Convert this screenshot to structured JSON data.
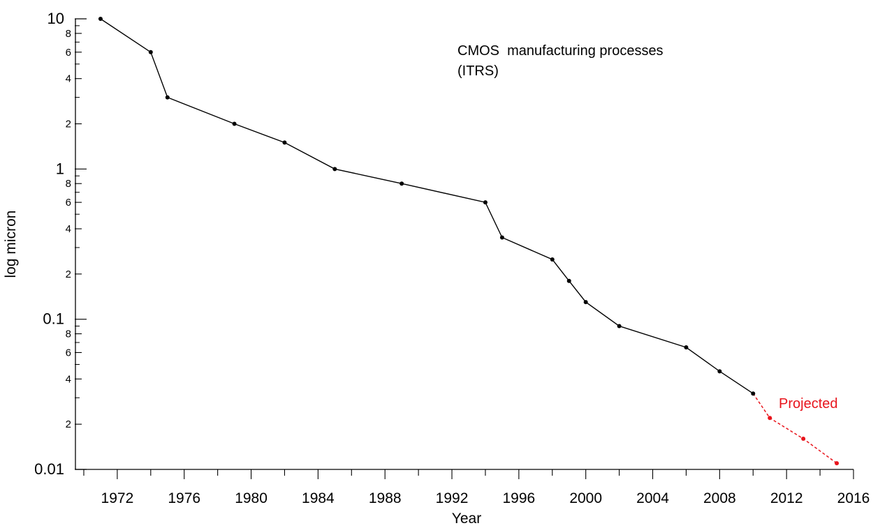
{
  "chart_data": {
    "type": "line",
    "title": "CMOS  manufacturing processes",
    "subtitle": "(ITRS)",
    "xlabel": "Year",
    "ylabel": "log micron",
    "yscale": "log",
    "ylim": [
      0.01,
      10
    ],
    "xlim": [
      1969.5,
      2016
    ],
    "grid": false,
    "x_ticks": [
      1972,
      1976,
      1980,
      1984,
      1988,
      1992,
      1996,
      2000,
      2004,
      2008,
      2012,
      2016
    ],
    "y_major_ticks": [
      {
        "value": 10,
        "label": "10"
      },
      {
        "value": 1,
        "label": "1"
      },
      {
        "value": 0.1,
        "label": "0.1"
      },
      {
        "value": 0.01,
        "label": "0.01"
      }
    ],
    "y_minor_ticks": [
      {
        "value": 8,
        "label": "8"
      },
      {
        "value": 6,
        "label": "6"
      },
      {
        "value": 4,
        "label": "4"
      },
      {
        "value": 2,
        "label": "2"
      },
      {
        "value": 0.8,
        "label": "8"
      },
      {
        "value": 0.6,
        "label": "6"
      },
      {
        "value": 0.4,
        "label": "4"
      },
      {
        "value": 0.2,
        "label": "2"
      },
      {
        "value": 0.08,
        "label": "8"
      },
      {
        "value": 0.06,
        "label": "6"
      },
      {
        "value": 0.04,
        "label": "4"
      },
      {
        "value": 0.02,
        "label": "2"
      }
    ],
    "series": [
      {
        "color": "#000000",
        "style": "solid",
        "x": [
          1971,
          1974,
          1975,
          1979,
          1982,
          1985,
          1989,
          1994,
          1995,
          1998,
          1999,
          2000,
          2002,
          2006,
          2008,
          2010
        ],
        "values": [
          10,
          6,
          3,
          2,
          1.5,
          1,
          0.8,
          0.6,
          0.35,
          0.25,
          0.18,
          0.13,
          0.09,
          0.065,
          0.045,
          0.032
        ]
      },
      {
        "name": "Projected",
        "color": "#e8141c",
        "style": "dashed",
        "x": [
          2010,
          2011,
          2013,
          2015
        ],
        "values": [
          0.032,
          0.022,
          0.016,
          0.011
        ]
      }
    ]
  }
}
